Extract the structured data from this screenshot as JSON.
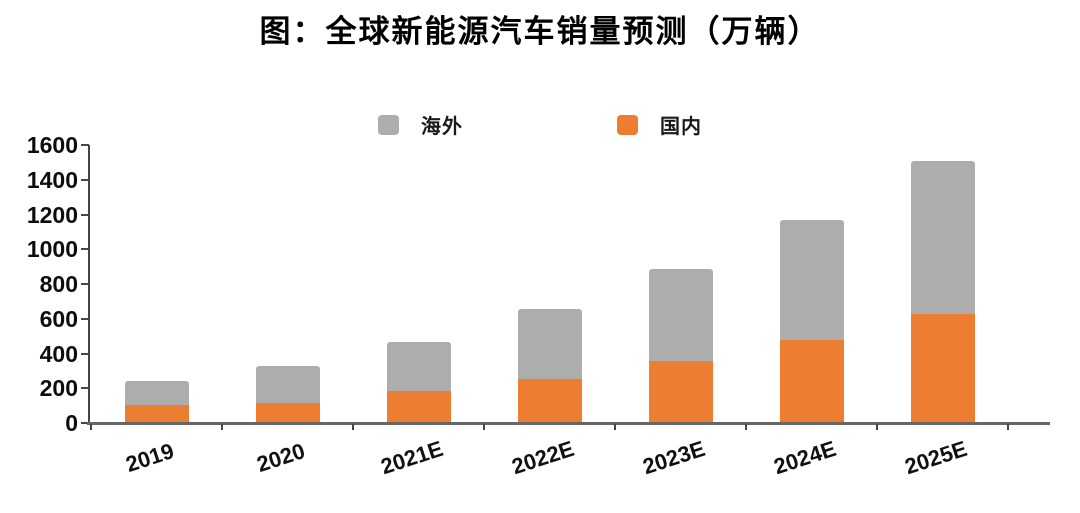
{
  "chart_data": {
    "type": "bar",
    "stacked": true,
    "title": "图：全球新能源汽车销量预测（万辆）",
    "unit": "万辆",
    "categories": [
      "2019",
      "2020",
      "2021E",
      "2022E",
      "2023E",
      "2024E",
      "2025E"
    ],
    "series": [
      {
        "name": "海外",
        "color": "#ADADAD",
        "values": [
          135,
          210,
          280,
          400,
          530,
          690,
          880
        ]
      },
      {
        "name": "国内",
        "color": "#ED7D31",
        "values": [
          100,
          110,
          180,
          250,
          350,
          470,
          620
        ]
      }
    ],
    "stack_bottom_to_top": [
      "国内",
      "海外"
    ],
    "totals": [
      235,
      320,
      460,
      650,
      880,
      1160,
      1500
    ],
    "ylim": [
      0,
      1600
    ],
    "ytick_step": 200,
    "ytick_labels": [
      "0",
      "200",
      "400",
      "600",
      "800",
      "1000",
      "1200",
      "1400",
      "1600"
    ],
    "xlabel": "",
    "ylabel": "",
    "grid": "off",
    "legend_position": "top-center",
    "axis_color": "#454545",
    "baseline_color": "#666666",
    "text_color": "#111111",
    "background_color": "#ffffff"
  }
}
